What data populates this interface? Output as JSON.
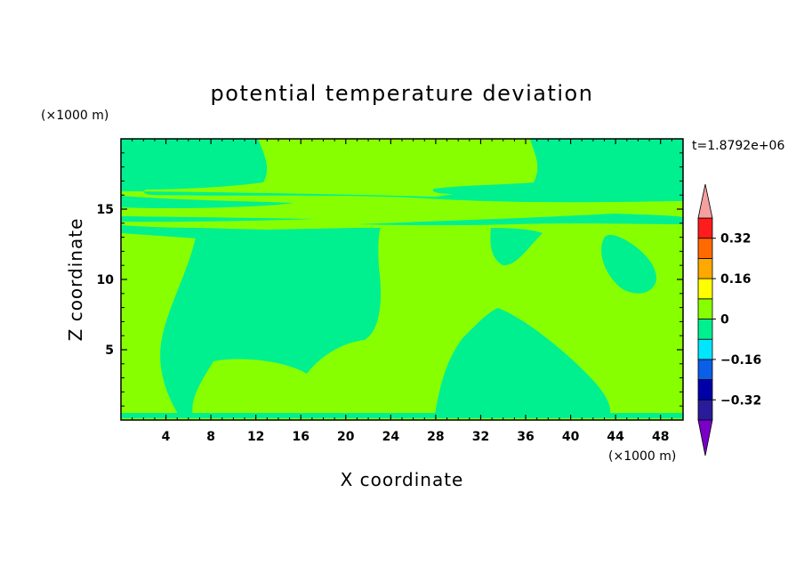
{
  "chart_data": {
    "type": "heatmap",
    "title": "potential temperature deviation",
    "xlabel": "X coordinate",
    "ylabel": "Z coordinate",
    "x_unit": "(×1000 m)",
    "y_unit": "(×1000 m)",
    "time_label": "t=1.8792e+06",
    "xlim": [
      0,
      50
    ],
    "ylim": [
      0,
      20
    ],
    "x_ticks": [
      "4",
      "8",
      "12",
      "16",
      "20",
      "24",
      "28",
      "32",
      "36",
      "40",
      "44",
      "48"
    ],
    "y_ticks": [
      "5",
      "10",
      "15"
    ],
    "x_tick_values": [
      4,
      8,
      12,
      16,
      20,
      24,
      28,
      32,
      36,
      40,
      44,
      48
    ],
    "y_tick_values": [
      5,
      10,
      15
    ],
    "colorbar": {
      "levels": [
        -0.4,
        -0.32,
        -0.24,
        -0.16,
        -0.08,
        0,
        0.08,
        0.16,
        0.24,
        0.32,
        0.4
      ],
      "labels": [
        "0.32",
        "0.16",
        "0",
        "−0.16",
        "−0.32"
      ],
      "label_values": [
        0.32,
        0.16,
        0,
        -0.16,
        -0.32
      ],
      "colors": [
        "#2a1b9b",
        "#0000a8",
        "#0b5ee8",
        "#00e6ff",
        "#00f090",
        "#88ff00",
        "#ffff00",
        "#ffa800",
        "#ff6a00",
        "#ff1c1c"
      ],
      "under_color": "#7a00c8",
      "over_color": "#f5a0a0"
    },
    "fields": {
      "background_range": [
        0,
        0.08
      ],
      "background_color": "#88ff00",
      "negative_region_range": [
        -0.08,
        0
      ],
      "negative_region_color": "#00f090"
    }
  }
}
